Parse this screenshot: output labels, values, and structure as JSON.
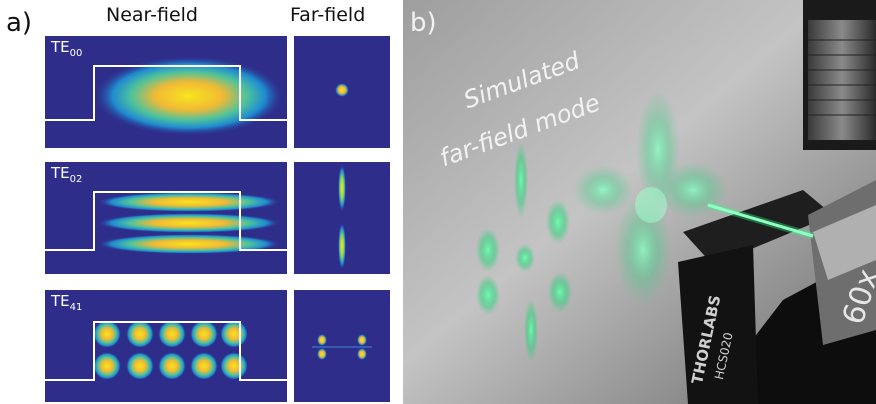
{
  "panel_a": {
    "label": "a)",
    "col_near": "Near-field",
    "col_far": "Far-field",
    "modes": [
      {
        "base": "TE",
        "sub": "00"
      },
      {
        "base": "TE",
        "sub": "02"
      },
      {
        "base": "TE",
        "sub": "41"
      }
    ]
  },
  "panel_b": {
    "label": "b)",
    "overlay_line1": "Simulated",
    "overlay_line2": "far-field mode",
    "brand": "THORLABS",
    "model": "HCS020",
    "lens_text": "60x"
  },
  "colors": {
    "field_background": "#2e2d8a",
    "beam": "#2cff8a"
  }
}
